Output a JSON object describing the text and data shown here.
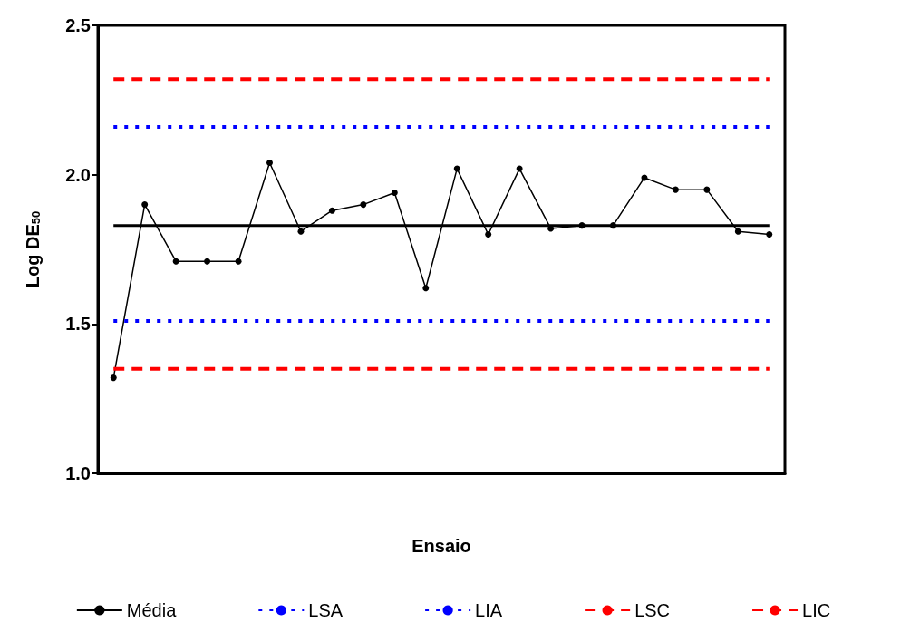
{
  "chart_data": {
    "type": "line",
    "xlabel": "Ensaio",
    "ylabel": "Log DE$_{50}$",
    "categories": [
      null,
      null,
      null,
      null,
      null,
      null,
      null,
      null,
      null,
      null,
      null,
      null,
      null,
      null,
      null,
      null,
      null,
      null,
      null,
      null,
      null,
      null
    ],
    "ylim": [
      1.0,
      2.5
    ],
    "yticks": [
      {
        "value": 1.0,
        "label": "1.0"
      },
      {
        "value": 1.5,
        "label": "1.5"
      },
      {
        "value": 2.0,
        "label": "2.0"
      },
      {
        "value": 2.5,
        "label": "2.5"
      }
    ],
    "tick_labels": "y",
    "legend": "bottom",
    "grid": false,
    "series": [
      {
        "color": "#000000",
        "marker": "circle",
        "line_style": "solid",
        "values": [
          1.32,
          1.9,
          1.71,
          1.71,
          1.71,
          2.04,
          1.81,
          1.88,
          1.9,
          1.94,
          1.62,
          2.02,
          1.8,
          2.02,
          1.82,
          1.83,
          1.83,
          1.99,
          1.95,
          1.95,
          1.81,
          1.8
        ]
      },
      {
        "name": "Média",
        "color": "#000000",
        "marker": "none",
        "line_style": "solid",
        "values": [
          1.83,
          1.83,
          1.83,
          1.83,
          1.83,
          1.83,
          1.83,
          1.83,
          1.83,
          1.83,
          1.83,
          1.83,
          1.83,
          1.83,
          1.83,
          1.83,
          1.83,
          1.83,
          1.83,
          1.83,
          1.83,
          1.83
        ]
      },
      {
        "name": "LSA",
        "color": "#0000ff",
        "marker": "none",
        "line_style": "dotted",
        "values": [
          2.16,
          2.16,
          2.16,
          2.16,
          2.16,
          2.16,
          2.16,
          2.16,
          2.16,
          2.16,
          2.16,
          2.16,
          2.16,
          2.16,
          2.16,
          2.16,
          2.16,
          2.16,
          2.16,
          2.16,
          2.16,
          2.16
        ]
      },
      {
        "name": "LIA",
        "color": "#0000ff",
        "marker": "none",
        "line_style": "dotted",
        "values": [
          1.51,
          1.51,
          1.51,
          1.51,
          1.51,
          1.51,
          1.51,
          1.51,
          1.51,
          1.51,
          1.51,
          1.51,
          1.51,
          1.51,
          1.51,
          1.51,
          1.51,
          1.51,
          1.51,
          1.51,
          1.51,
          1.51
        ]
      },
      {
        "name": "LSC",
        "color": "#ff0000",
        "marker": "none",
        "line_style": "dashed",
        "values": [
          2.32,
          2.32,
          2.32,
          2.32,
          2.32,
          2.32,
          2.32,
          2.32,
          2.32,
          2.32,
          2.32,
          2.32,
          2.32,
          2.32,
          2.32,
          2.32,
          2.32,
          2.32,
          2.32,
          2.32,
          2.32,
          2.32
        ]
      },
      {
        "name": "LIC",
        "color": "#ff0000",
        "marker": "none",
        "line_style": "dashed",
        "values": [
          1.35,
          1.35,
          1.35,
          1.35,
          1.35,
          1.35,
          1.35,
          1.35,
          1.35,
          1.35,
          1.35,
          1.35,
          1.35,
          1.35,
          1.35,
          1.35,
          1.35,
          1.35,
          1.35,
          1.35,
          1.35,
          1.35
        ]
      }
    ]
  }
}
